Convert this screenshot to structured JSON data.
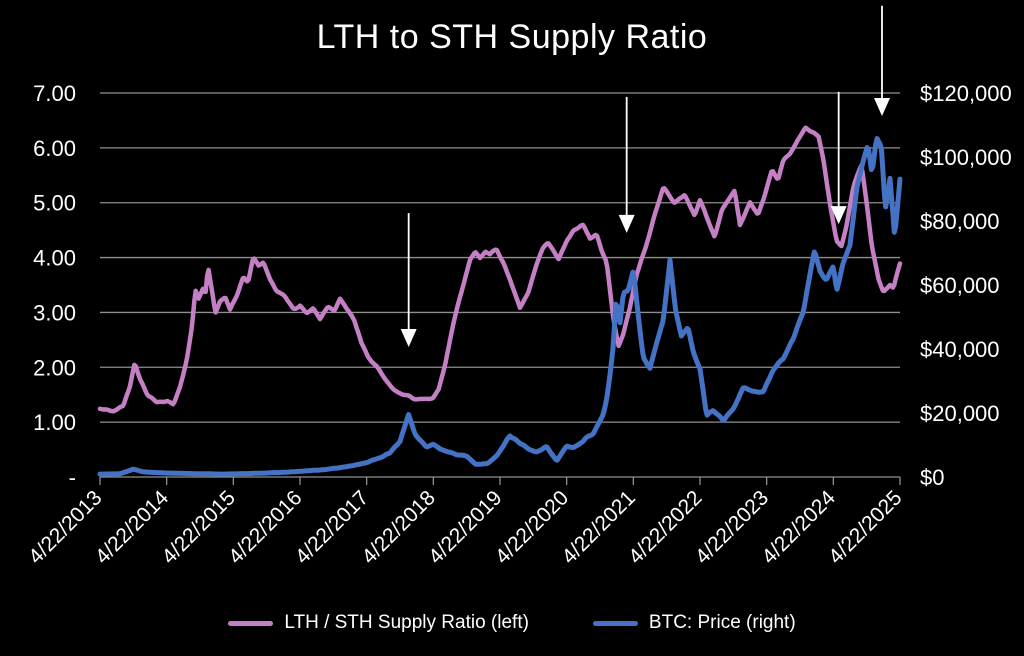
{
  "title": "LTH to STH Supply Ratio",
  "colors": {
    "background": "#000000",
    "ratio_line": "#c57fc5",
    "price_line": "#4472c4",
    "grid": "#8f8f8f",
    "text": "#ffffff",
    "arrow": "#ffffff"
  },
  "chart_data": {
    "type": "line",
    "title": "LTH to STH Supply Ratio",
    "x_unit": "years since 4/22/2013 (category axis, one tick per year)",
    "x_tick_labels": [
      "4/22/2013",
      "4/22/2014",
      "4/22/2015",
      "4/22/2016",
      "4/22/2017",
      "4/22/2018",
      "4/22/2019",
      "4/22/2020",
      "4/22/2021",
      "4/22/2022",
      "4/22/2023",
      "4/22/2024",
      "4/22/2025"
    ],
    "left_axis": {
      "min": 0,
      "max": 7,
      "tick_labels_top_down": [
        "7.00",
        "6.00",
        "5.00",
        "4.00",
        "3.00",
        "2.00",
        "1.00",
        "-"
      ]
    },
    "right_axis": {
      "min": 0,
      "max": 120000,
      "tick_labels_top_down": [
        "$120,000",
        "$100,000",
        "$80,000",
        "$60,000",
        "$40,000",
        "$20,000",
        "$0"
      ]
    },
    "grid": "horizontal",
    "legend_position": "bottom",
    "series": [
      {
        "name": "LTH / STH Supply Ratio (left)",
        "axis": "left",
        "color": "#c57fc5",
        "points": [
          [
            0,
            1.25
          ],
          [
            0.2,
            1.2
          ],
          [
            0.35,
            1.3
          ],
          [
            0.45,
            1.65
          ],
          [
            0.52,
            2.06
          ],
          [
            0.6,
            1.78
          ],
          [
            0.72,
            1.48
          ],
          [
            0.85,
            1.36
          ],
          [
            1,
            1.38
          ],
          [
            1.1,
            1.32
          ],
          [
            1.2,
            1.65
          ],
          [
            1.3,
            2.1
          ],
          [
            1.38,
            2.75
          ],
          [
            1.43,
            3.42
          ],
          [
            1.48,
            3.25
          ],
          [
            1.55,
            3.45
          ],
          [
            1.58,
            3.3
          ],
          [
            1.62,
            3.85
          ],
          [
            1.68,
            3.4
          ],
          [
            1.73,
            2.98
          ],
          [
            1.8,
            3.2
          ],
          [
            1.88,
            3.3
          ],
          [
            1.95,
            3.05
          ],
          [
            2.05,
            3.3
          ],
          [
            2.15,
            3.65
          ],
          [
            2.22,
            3.55
          ],
          [
            2.3,
            4.0
          ],
          [
            2.38,
            3.85
          ],
          [
            2.45,
            3.92
          ],
          [
            2.55,
            3.6
          ],
          [
            2.65,
            3.4
          ],
          [
            2.78,
            3.28
          ],
          [
            2.9,
            3.05
          ],
          [
            3,
            3.12
          ],
          [
            3.1,
            2.98
          ],
          [
            3.2,
            3.08
          ],
          [
            3.3,
            2.88
          ],
          [
            3.42,
            3.1
          ],
          [
            3.52,
            3.02
          ],
          [
            3.6,
            3.24
          ],
          [
            3.72,
            3.05
          ],
          [
            3.82,
            2.85
          ],
          [
            3.92,
            2.45
          ],
          [
            4.02,
            2.2
          ],
          [
            4.12,
            2.05
          ],
          [
            4.25,
            1.85
          ],
          [
            4.4,
            1.6
          ],
          [
            4.55,
            1.5
          ],
          [
            4.7,
            1.44
          ],
          [
            4.85,
            1.4
          ],
          [
            5,
            1.45
          ],
          [
            5.08,
            1.6
          ],
          [
            5.18,
            2.05
          ],
          [
            5.3,
            2.8
          ],
          [
            5.45,
            3.5
          ],
          [
            5.55,
            3.95
          ],
          [
            5.63,
            4.1
          ],
          [
            5.7,
            4.0
          ],
          [
            5.78,
            4.12
          ],
          [
            5.85,
            4.05
          ],
          [
            5.95,
            4.15
          ],
          [
            6.05,
            3.9
          ],
          [
            6.15,
            3.6
          ],
          [
            6.3,
            3.1
          ],
          [
            6.42,
            3.35
          ],
          [
            6.55,
            3.9
          ],
          [
            6.65,
            4.2
          ],
          [
            6.72,
            4.28
          ],
          [
            6.88,
            3.98
          ],
          [
            7,
            4.3
          ],
          [
            7.1,
            4.5
          ],
          [
            7.25,
            4.6
          ],
          [
            7.35,
            4.35
          ],
          [
            7.45,
            4.4
          ],
          [
            7.52,
            4.15
          ],
          [
            7.6,
            3.9
          ],
          [
            7.65,
            3.4
          ],
          [
            7.7,
            2.9
          ],
          [
            7.78,
            2.38
          ],
          [
            7.85,
            2.6
          ],
          [
            7.95,
            3.1
          ],
          [
            8.05,
            3.7
          ],
          [
            8.18,
            4.15
          ],
          [
            8.3,
            4.7
          ],
          [
            8.45,
            5.28
          ],
          [
            8.62,
            5.0
          ],
          [
            8.77,
            5.14
          ],
          [
            8.92,
            4.77
          ],
          [
            9,
            5.05
          ],
          [
            9.22,
            4.37
          ],
          [
            9.33,
            4.87
          ],
          [
            9.52,
            5.23
          ],
          [
            9.6,
            4.59
          ],
          [
            9.75,
            5.0
          ],
          [
            9.87,
            4.77
          ],
          [
            9.97,
            5.14
          ],
          [
            10.08,
            5.6
          ],
          [
            10.17,
            5.41
          ],
          [
            10.25,
            5.77
          ],
          [
            10.35,
            5.9
          ],
          [
            10.45,
            6.1
          ],
          [
            10.58,
            6.37
          ],
          [
            10.68,
            6.3
          ],
          [
            10.78,
            6.2
          ],
          [
            10.85,
            5.8
          ],
          [
            10.95,
            5.0
          ],
          [
            11.05,
            4.3
          ],
          [
            11.12,
            4.2
          ],
          [
            11.2,
            4.6
          ],
          [
            11.3,
            5.3
          ],
          [
            11.42,
            5.68
          ],
          [
            11.5,
            5.0
          ],
          [
            11.58,
            4.2
          ],
          [
            11.68,
            3.6
          ],
          [
            11.75,
            3.38
          ],
          [
            11.85,
            3.5
          ],
          [
            11.9,
            3.45
          ],
          [
            12,
            3.9
          ]
        ]
      },
      {
        "name": "BTC: Price (right)",
        "axis": "right",
        "color": "#4472c4",
        "points": [
          [
            0,
            900
          ],
          [
            0.3,
            1000
          ],
          [
            0.5,
            2400
          ],
          [
            0.65,
            1600
          ],
          [
            0.9,
            1300
          ],
          [
            1.3,
            1100
          ],
          [
            1.8,
            900
          ],
          [
            2.3,
            1100
          ],
          [
            2.8,
            1500
          ],
          [
            3.3,
            2200
          ],
          [
            3.7,
            3200
          ],
          [
            4,
            4500
          ],
          [
            4.2,
            6000
          ],
          [
            4.35,
            7500
          ],
          [
            4.5,
            11000
          ],
          [
            4.63,
            19800
          ],
          [
            4.72,
            13800
          ],
          [
            4.8,
            11500
          ],
          [
            4.9,
            9500
          ],
          [
            5,
            10500
          ],
          [
            5.1,
            8500
          ],
          [
            5.25,
            7800
          ],
          [
            5.35,
            7000
          ],
          [
            5.5,
            6500
          ],
          [
            5.63,
            4000
          ],
          [
            5.8,
            4200
          ],
          [
            5.95,
            6500
          ],
          [
            6.15,
            13000
          ],
          [
            6.3,
            10500
          ],
          [
            6.45,
            8500
          ],
          [
            6.55,
            7800
          ],
          [
            6.7,
            9500
          ],
          [
            6.85,
            5000
          ],
          [
            7,
            9800
          ],
          [
            7.1,
            9300
          ],
          [
            7.25,
            11500
          ],
          [
            7.4,
            13800
          ],
          [
            7.55,
            20000
          ],
          [
            7.6,
            24000
          ],
          [
            7.65,
            32000
          ],
          [
            7.7,
            41000
          ],
          [
            7.74,
            55000
          ],
          [
            7.8,
            48000
          ],
          [
            7.85,
            57000
          ],
          [
            7.92,
            58000
          ],
          [
            8,
            64500
          ],
          [
            8.07,
            51000
          ],
          [
            8.15,
            37500
          ],
          [
            8.25,
            34000
          ],
          [
            8.35,
            42000
          ],
          [
            8.45,
            49000
          ],
          [
            8.55,
            67800
          ],
          [
            8.63,
            52000
          ],
          [
            8.72,
            44000
          ],
          [
            8.82,
            47000
          ],
          [
            8.9,
            39000
          ],
          [
            9,
            34000
          ],
          [
            9.1,
            19500
          ],
          [
            9.2,
            21000
          ],
          [
            9.35,
            17500
          ],
          [
            9.5,
            21000
          ],
          [
            9.65,
            28000
          ],
          [
            9.8,
            27000
          ],
          [
            9.95,
            26500
          ],
          [
            10.1,
            34000
          ],
          [
            10.25,
            37000
          ],
          [
            10.4,
            43500
          ],
          [
            10.55,
            52000
          ],
          [
            10.65,
            63000
          ],
          [
            10.72,
            71000
          ],
          [
            10.8,
            64000
          ],
          [
            10.9,
            61500
          ],
          [
            11,
            66000
          ],
          [
            11.05,
            58000
          ],
          [
            11.15,
            67000
          ],
          [
            11.25,
            72000
          ],
          [
            11.35,
            90000
          ],
          [
            11.45,
            99000
          ],
          [
            11.52,
            103500
          ],
          [
            11.58,
            95000
          ],
          [
            11.65,
            106000
          ],
          [
            11.72,
            103000
          ],
          [
            11.78,
            84000
          ],
          [
            11.85,
            93500
          ],
          [
            11.92,
            75000
          ],
          [
            12,
            93000
          ]
        ]
      }
    ],
    "annotations": {
      "arrows_down": [
        {
          "t": 4.63,
          "from_value": 4.81,
          "tip_value": 2.37
        },
        {
          "t": 7.9,
          "from_value": 6.93,
          "tip_value": 4.45
        },
        {
          "t": 11.08,
          "from_value": 7.02,
          "tip_value": 4.61
        },
        {
          "t": 11.73,
          "from_value": 8.59,
          "tip_value": 6.58
        }
      ]
    }
  },
  "legend": {
    "items": [
      {
        "label": "LTH / STH Supply Ratio (left)",
        "color": "#c57fc5"
      },
      {
        "label": "BTC: Price (right)",
        "color": "#4472c4"
      }
    ]
  }
}
